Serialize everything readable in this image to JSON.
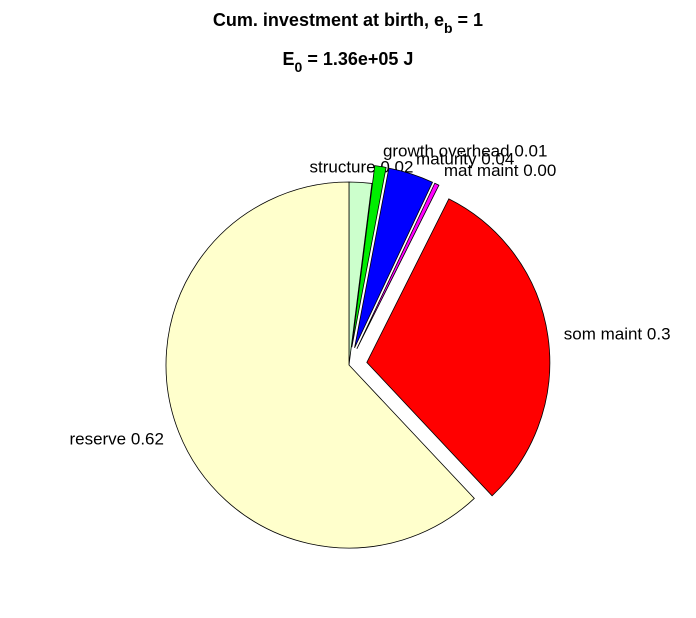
{
  "chart_data": {
    "type": "pie",
    "title": [
      "Cum. investment at birth, e",
      "b",
      " = 1"
    ],
    "subtitle": [
      "E",
      "0",
      " = 1.36e+05 J"
    ],
    "categories": [
      "structure",
      "growth overhead",
      "maturity",
      "mat maint",
      "som maint",
      "reserve"
    ],
    "values": [
      0.02,
      0.01,
      0.04,
      0.004,
      0.306,
      0.62
    ],
    "value_labels": [
      "0.02",
      "0.01",
      "0.04",
      "0.00",
      "0.3",
      "0.62"
    ],
    "colors": [
      "#ccffcc",
      "#00ee00",
      "#0000ff",
      "#ff00ff",
      "#ff0000",
      "#ffffcc"
    ],
    "explode": [
      false,
      true,
      true,
      true,
      true,
      false
    ]
  }
}
